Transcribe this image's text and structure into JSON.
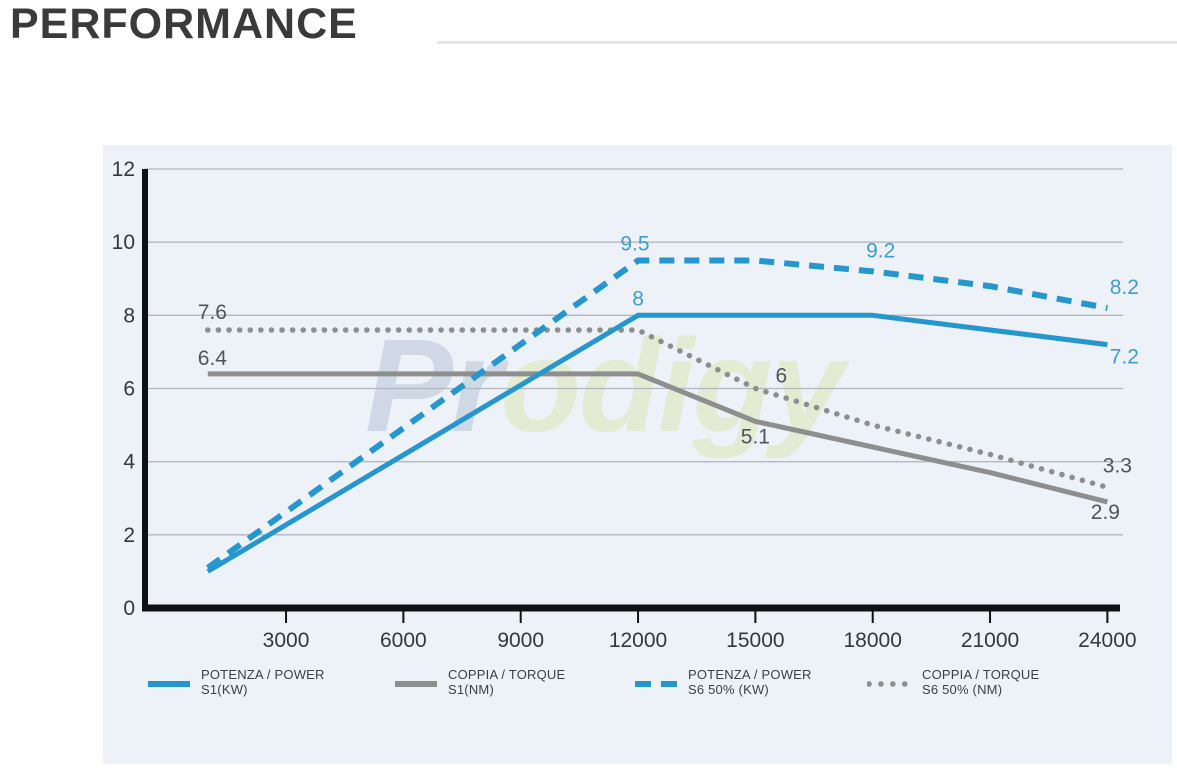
{
  "page": {
    "title": "PERFORMANCE"
  },
  "watermark": {
    "part1": "Pr",
    "part2": "odigy"
  },
  "colors": {
    "blue": "#2696ce",
    "gray": "#8e8e8e",
    "blue_label": "#3f9cd2",
    "dark_label": "#515359",
    "panel_bg": "#edf1f8",
    "grid": "#b3b7bf",
    "axis": "#101114",
    "tick_label": "#34373d",
    "title": "#3a3a3a",
    "divider": "#e7e7e7"
  },
  "chart_data": {
    "type": "line",
    "title": "PERFORMANCE",
    "xlabel": "",
    "ylabel": "",
    "xlim": [
      0,
      24000
    ],
    "ylim": [
      0,
      12
    ],
    "x_ticks": [
      3000,
      6000,
      9000,
      12000,
      15000,
      18000,
      21000,
      24000
    ],
    "y_ticks": [
      0,
      2,
      4,
      6,
      8,
      10,
      12
    ],
    "grid": true,
    "legend_position": "bottom",
    "series": [
      {
        "name": "POTENZA / POWER S1 (KW)",
        "legend_line1": "POTENZA / POWER",
        "legend_line2": "S1(KW)",
        "style": "solid",
        "color": "#2696ce",
        "label_color": "#3f9cd2",
        "width": 5,
        "points": [
          [
            1000,
            1.0
          ],
          [
            12000,
            8.0
          ],
          [
            18000,
            8.0
          ],
          [
            24000,
            7.2
          ]
        ],
        "labels": [
          {
            "text": "8",
            "x": 12000,
            "y": 8.0,
            "dx": 0,
            "dy": -10
          },
          {
            "text": "7.2",
            "x": 24000,
            "y": 7.2,
            "dx": 17,
            "dy": 19
          }
        ]
      },
      {
        "name": "COPPIA / TORQUE S1 (NM)",
        "legend_line1": "COPPIA / TORQUE",
        "legend_line2": "S1(NM)",
        "style": "solid",
        "color": "#8e8e8e",
        "label_color": "#515359",
        "width": 5,
        "points": [
          [
            1000,
            6.4
          ],
          [
            12000,
            6.4
          ],
          [
            15000,
            5.1
          ],
          [
            18000,
            4.4
          ],
          [
            21000,
            3.7
          ],
          [
            24000,
            2.9
          ]
        ],
        "labels": [
          {
            "text": "6.4",
            "x": 1000,
            "y": 6.4,
            "dx": -10,
            "dy": -9,
            "anchor": "start"
          },
          {
            "text": "5.1",
            "x": 15000,
            "y": 5.1,
            "dx": 0,
            "dy": 22
          },
          {
            "text": "2.9",
            "x": 24000,
            "y": 2.9,
            "dx": -2,
            "dy": 17
          }
        ]
      },
      {
        "name": "POTENZA / POWER S6 50% (KW)",
        "legend_line1": "POTENZA / POWER",
        "legend_line2": "S6 50% (KW)",
        "style": "dashed",
        "color": "#2696ce",
        "label_color": "#3f9cd2",
        "width": 6,
        "points": [
          [
            1000,
            1.1
          ],
          [
            12000,
            9.5
          ],
          [
            15000,
            9.5
          ],
          [
            18000,
            9.2
          ],
          [
            21000,
            8.8
          ],
          [
            24000,
            8.2
          ]
        ],
        "labels": [
          {
            "text": "9.5",
            "x": 12000,
            "y": 9.5,
            "dx": -3,
            "dy": -10
          },
          {
            "text": "9.2",
            "x": 18000,
            "y": 9.2,
            "dx": 8,
            "dy": -14
          },
          {
            "text": "8.2",
            "x": 24000,
            "y": 8.2,
            "dx": 17,
            "dy": -14
          }
        ]
      },
      {
        "name": "COPPIA / TORQUE S6 50% (NM)",
        "legend_line1": "COPPIA / TORQUE",
        "legend_line2": "S6 50% (NM)",
        "style": "dotted",
        "color": "#8e8e8e",
        "label_color": "#515359",
        "width": 5.5,
        "points": [
          [
            1000,
            7.6
          ],
          [
            12000,
            7.6
          ],
          [
            15000,
            6.0
          ],
          [
            18000,
            5.0
          ],
          [
            21000,
            4.2
          ],
          [
            24000,
            3.3
          ]
        ],
        "labels": [
          {
            "text": "7.6",
            "x": 1000,
            "y": 7.6,
            "dx": -10,
            "dy": -11,
            "anchor": "start"
          },
          {
            "text": "6",
            "x": 15000,
            "y": 6.0,
            "dx": 26,
            "dy": -6
          },
          {
            "text": "3.3",
            "x": 24000,
            "y": 3.3,
            "dx": 10,
            "dy": -15
          }
        ]
      }
    ]
  }
}
